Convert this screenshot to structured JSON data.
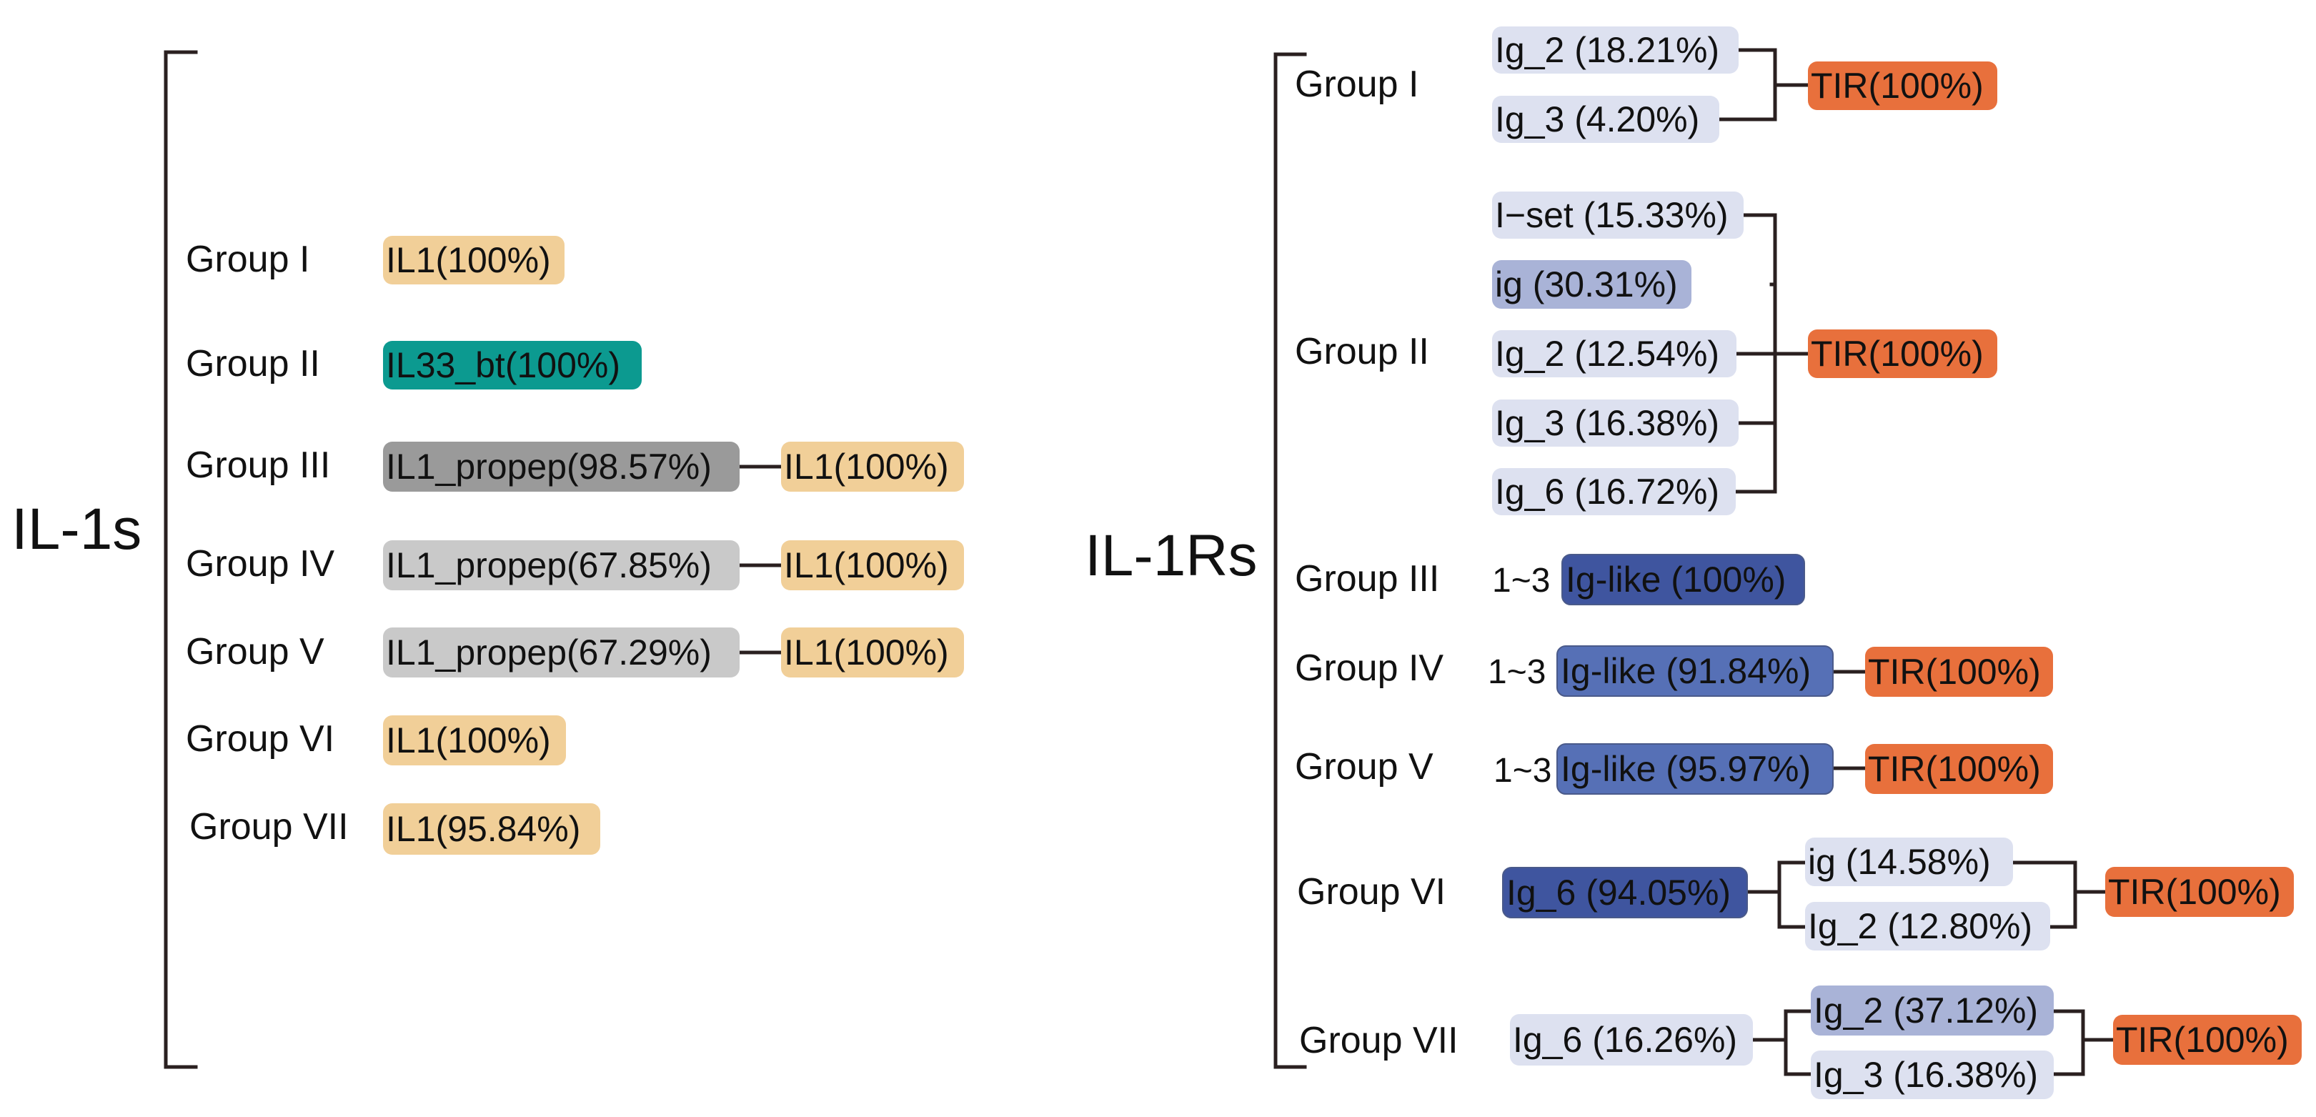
{
  "colors": {
    "il1": "#f1cf98",
    "il33_bt": "#0c9a90",
    "propep_dark": "#9a9a9a",
    "propep_light": "#c9c9c9",
    "tir": "#e8703c",
    "ig_pale": "#dde1f0",
    "ig_light_blue": "#a9b3d7",
    "ig_dark_navy": "#3f559f",
    "ig_medium_blue": "#5670b6",
    "line": "#2a2020"
  },
  "il1s": {
    "title": "IL-1s",
    "groups": [
      {
        "label": "Group I",
        "domains": [
          "IL1(100%)"
        ]
      },
      {
        "label": "Group II",
        "domains": [
          "IL33_bt(100%)"
        ]
      },
      {
        "label": "Group III",
        "domains": [
          "IL1_propep(98.57%)",
          "IL1(100%)"
        ]
      },
      {
        "label": "Group IV",
        "domains": [
          "IL1_propep(67.85%)",
          "IL1(100%)"
        ]
      },
      {
        "label": "Group V",
        "domains": [
          "IL1_propep(67.29%)",
          "IL1(100%)"
        ]
      },
      {
        "label": "Group VI",
        "domains": [
          "IL1(100%)"
        ]
      },
      {
        "label": "Group VII",
        "domains": [
          "IL1(95.84%)"
        ]
      }
    ]
  },
  "il1rs": {
    "title": "IL-1Rs",
    "groups": [
      {
        "label": "Group I",
        "domains": [
          "Ig_2 (18.21%)",
          "Ig_3 (4.20%)",
          "TIR(100%)"
        ]
      },
      {
        "label": "Group II",
        "domains": [
          "I−set (15.33%)",
          "ig (30.31%)",
          "Ig_2 (12.54%)",
          "Ig_3 (16.38%)",
          "Ig_6 (16.72%)",
          "TIR(100%)"
        ]
      },
      {
        "label": "Group III",
        "prefix": "1~3",
        "domains": [
          "Ig-like (100%)"
        ]
      },
      {
        "label": "Group IV",
        "prefix": "1~3",
        "domains": [
          "Ig-like (91.84%)",
          "TIR(100%)"
        ]
      },
      {
        "label": "Group V",
        "prefix": "1~3",
        "domains": [
          "Ig-like (95.97%)",
          "TIR(100%)"
        ]
      },
      {
        "label": "Group VI",
        "domains": [
          "Ig_6 (94.05%)",
          "ig (14.58%)",
          "Ig_2 (12.80%)",
          "TIR(100%)"
        ]
      },
      {
        "label": "Group VII",
        "domains": [
          "Ig_6 (16.26%)",
          "Ig_2 (37.12%)",
          "Ig_3 (16.38%)",
          "TIR(100%)"
        ]
      }
    ]
  }
}
